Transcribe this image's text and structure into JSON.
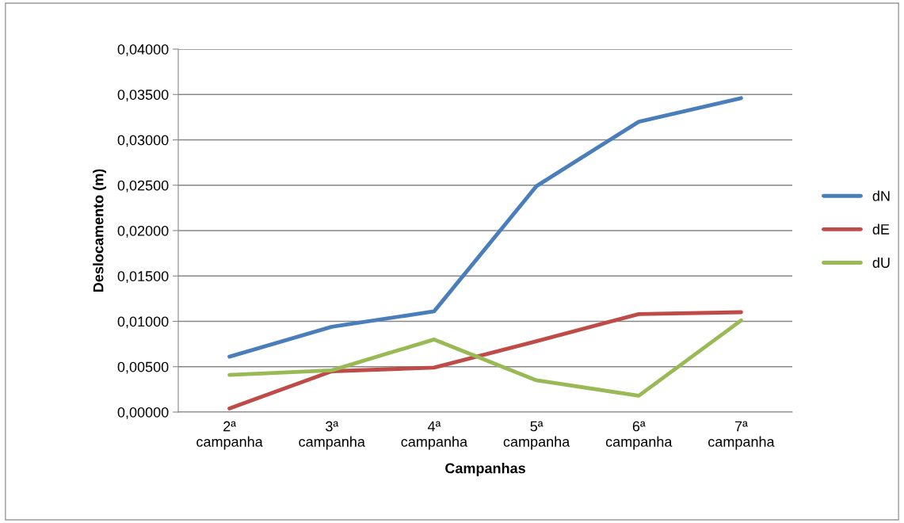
{
  "chart_data": {
    "type": "line",
    "xlabel": "Campanhas",
    "ylabel": "Deslocamento (m)",
    "categories": [
      "2ª\ncampanha",
      "3ª\ncampanha",
      "4ª\ncampanha",
      "5ª\ncampanha",
      "6ª\ncampanha",
      "7ª\ncampanha"
    ],
    "series": [
      {
        "name": "dN",
        "color": "#4a7ebb",
        "values": [
          0.0061,
          0.0094,
          0.0111,
          0.0249,
          0.032,
          0.0346
        ]
      },
      {
        "name": "dE",
        "color": "#be4b48",
        "values": [
          0.0004,
          0.0045,
          0.0049,
          0.0078,
          0.0108,
          0.011
        ]
      },
      {
        "name": "dU",
        "color": "#98b954",
        "values": [
          0.0041,
          0.0046,
          0.008,
          0.0035,
          0.0018,
          0.0101
        ]
      }
    ],
    "ylim": [
      0,
      0.04
    ],
    "yticks": [
      {
        "value": 0,
        "label": "0,00000"
      },
      {
        "value": 0.005,
        "label": "0,00500"
      },
      {
        "value": 0.01,
        "label": "0,01000"
      },
      {
        "value": 0.015,
        "label": "0,01500"
      },
      {
        "value": 0.02,
        "label": "0,02000"
      },
      {
        "value": 0.025,
        "label": "0,02500"
      },
      {
        "value": 0.03,
        "label": "0,03000"
      },
      {
        "value": 0.035,
        "label": "0,03500"
      },
      {
        "value": 0.04,
        "label": "0,04000"
      }
    ],
    "grid": "y",
    "legend": "right",
    "marker": "none",
    "line_style": "solid"
  }
}
